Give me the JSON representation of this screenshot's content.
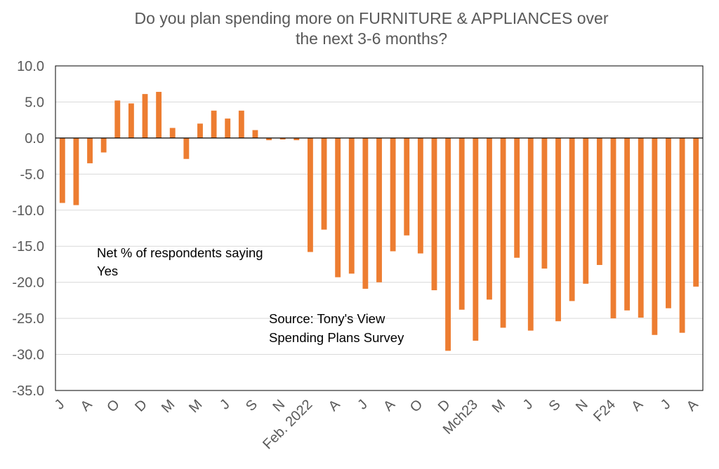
{
  "chart_data": {
    "type": "bar",
    "title_lines": [
      "Do you plan spending more on FURNITURE & APPLIANCES over",
      "the next 3-6 months?"
    ],
    "xlabel": "",
    "ylabel": "",
    "ylim": [
      -35,
      10
    ],
    "yticks": [
      10,
      5,
      0,
      -5,
      -10,
      -15,
      -20,
      -25,
      -30,
      -35
    ],
    "ytick_labels": [
      "10.0",
      "5.0",
      "0.0",
      "-5.0",
      "-10.0",
      "-15.0",
      "-20.0",
      "-25.0",
      "-30.0",
      "-35.0"
    ],
    "grid": true,
    "bar_color": "#ED7D31",
    "categories": [
      "J",
      "",
      "A",
      "",
      "O",
      "",
      "D",
      "",
      "M",
      "",
      "M",
      "",
      "J",
      "",
      "S",
      "",
      "N",
      "",
      "Feb. 2022",
      "",
      "A",
      "",
      "J",
      "",
      "A",
      "",
      "O",
      "",
      "D",
      "",
      "Mch23",
      "",
      "M",
      "",
      "J",
      "",
      "S",
      "",
      "N",
      "",
      "F24",
      "",
      "A",
      "",
      "J",
      "",
      "A"
    ],
    "values": [
      -9.0,
      -9.3,
      -3.5,
      -2.0,
      5.2,
      4.8,
      6.1,
      6.4,
      1.4,
      -2.9,
      2.0,
      3.8,
      2.7,
      3.8,
      1.1,
      -0.3,
      -0.2,
      -0.3,
      -15.8,
      -12.7,
      -19.3,
      -18.8,
      -20.9,
      -20.0,
      -15.7,
      -13.5,
      -16.0,
      -21.1,
      -29.5,
      -23.8,
      -28.1,
      -22.4,
      -26.3,
      -16.6,
      -26.7,
      -18.1,
      -25.4,
      -22.6,
      -20.2,
      -17.6,
      -25.0,
      -23.9,
      -24.9,
      -27.3,
      -23.6,
      -27.0,
      -20.6
    ],
    "annotations": [
      {
        "id": "net",
        "lines": [
          "Net % of respondents saying",
          "Yes"
        ]
      },
      {
        "id": "source",
        "lines": [
          "Source: Tony's View",
          "Spending Plans Survey"
        ]
      }
    ]
  }
}
